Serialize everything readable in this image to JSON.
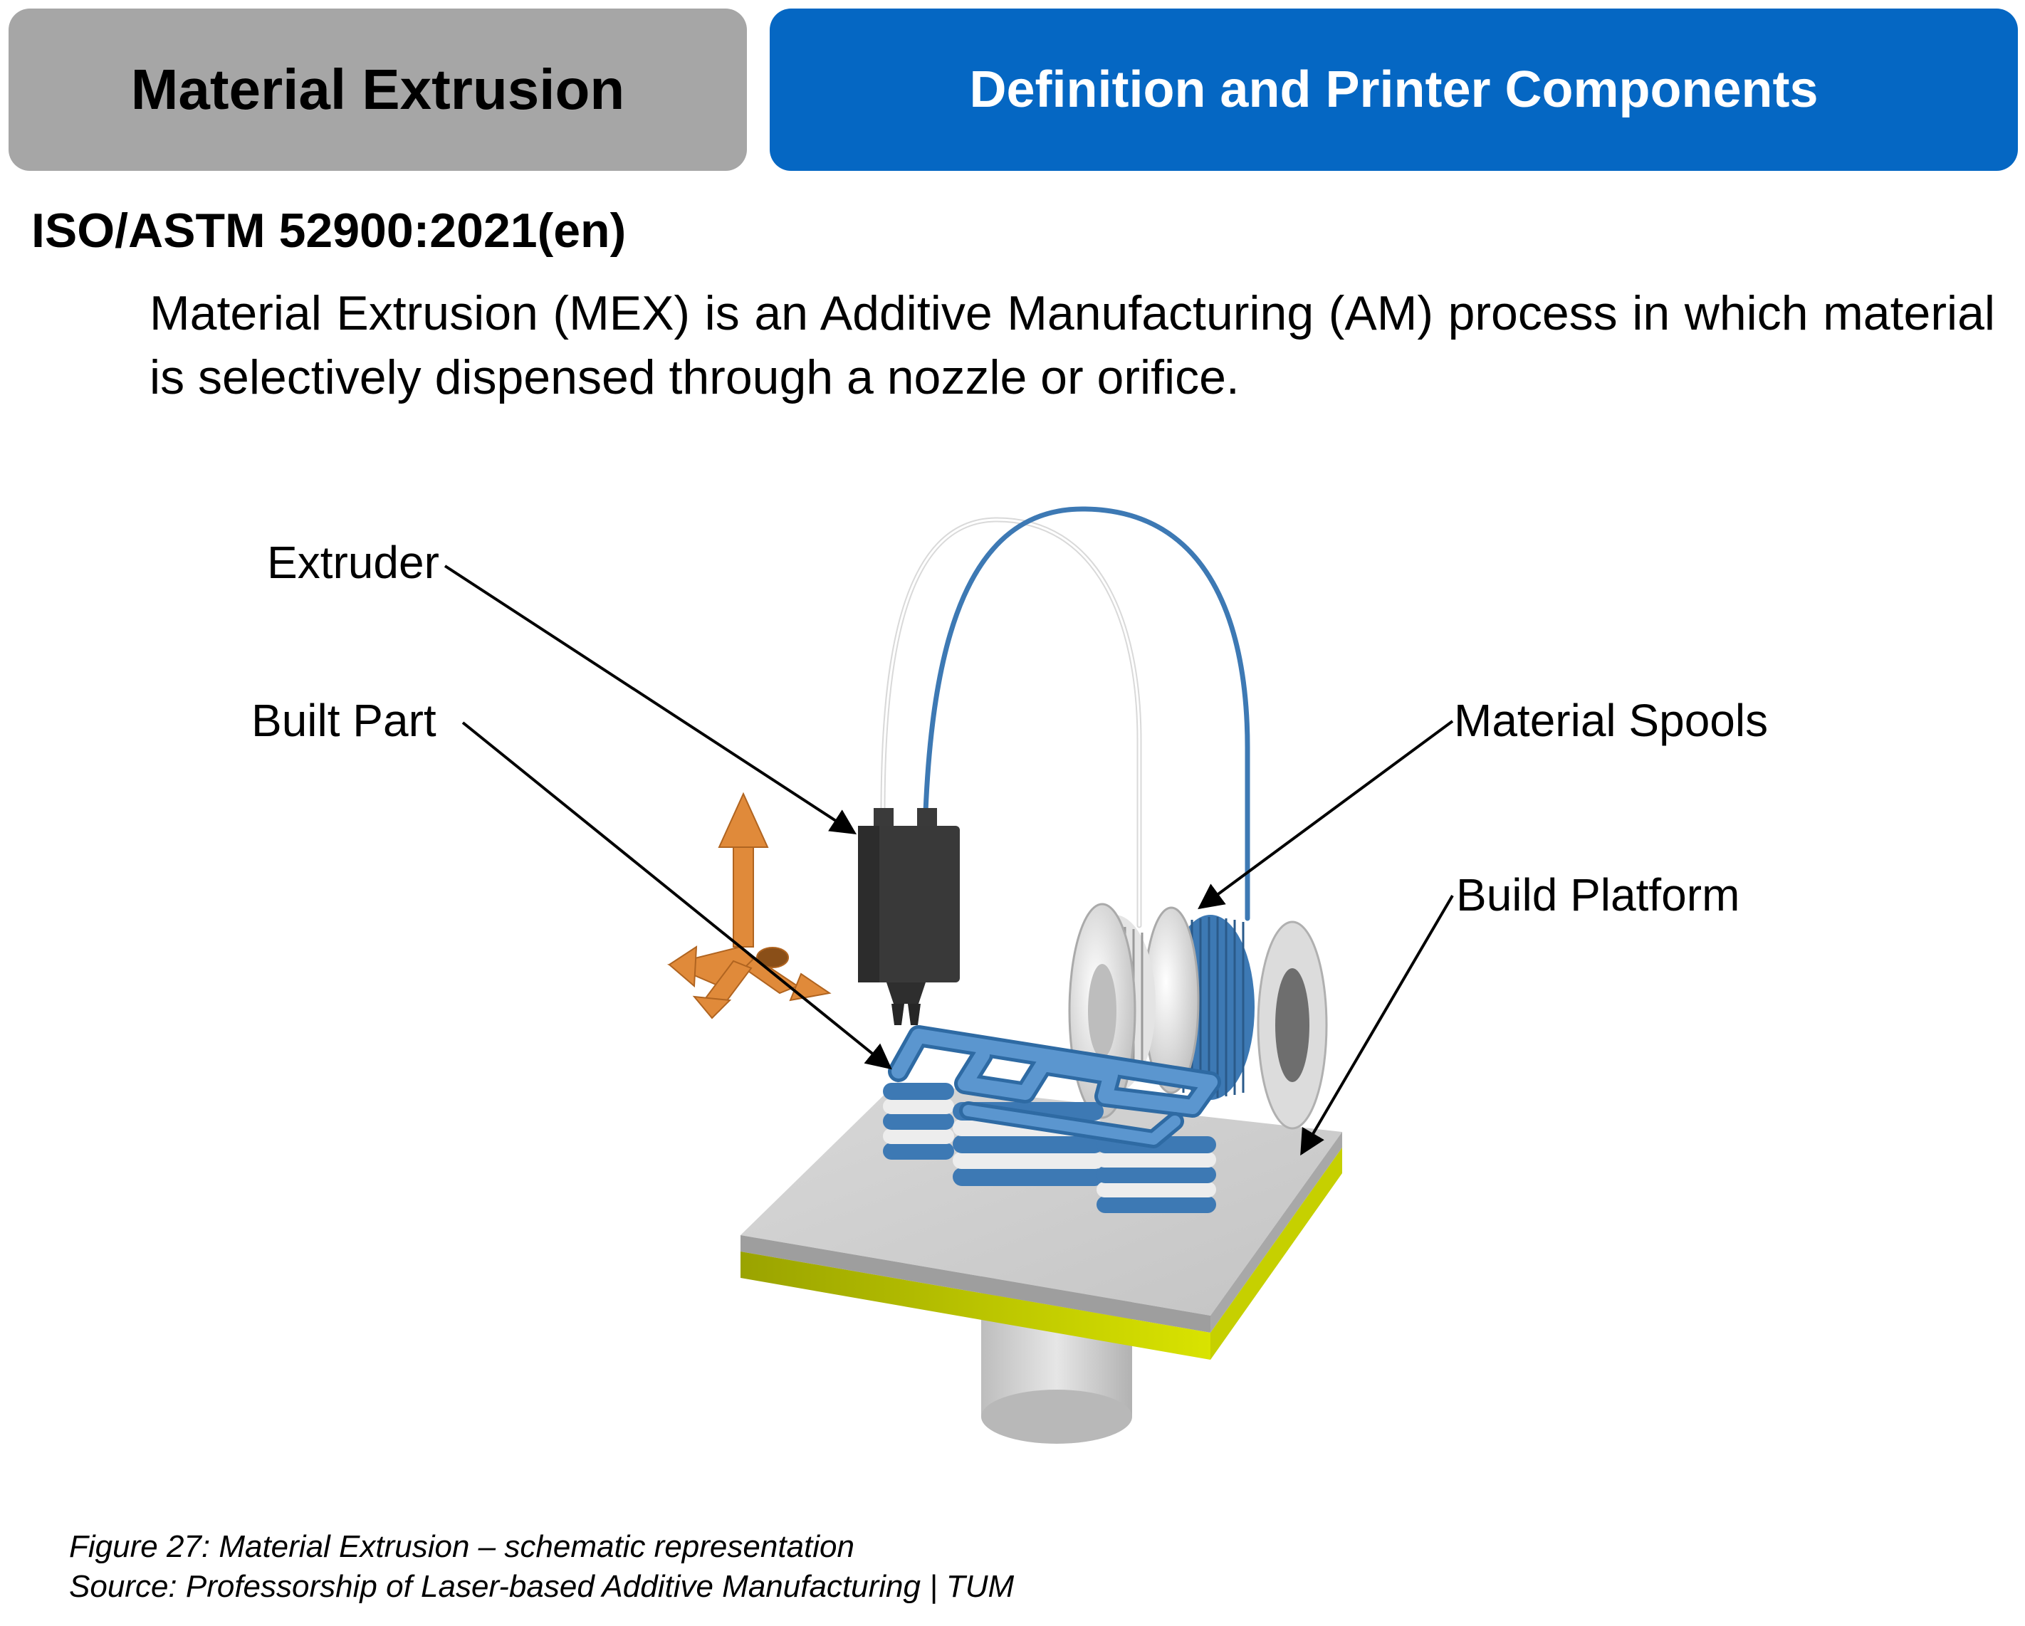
{
  "header": {
    "left_title": "Material Extrusion",
    "right_title": "Definition and Printer Components"
  },
  "standard": "ISO/ASTM 52900:2021(en)",
  "definition": "Material Extrusion (MEX) is an Additive Manufacturing (AM) process in which material is selectively dispensed through a nozzle or orifice.",
  "figure": {
    "labels": {
      "extruder": "Extruder",
      "built_part": "Built Part",
      "material_spools": "Material Spools",
      "build_platform": "Build Platform"
    },
    "colors": {
      "blue_filament": "#3d79b4",
      "white_filament": "#ececec",
      "platform_top": "#cfcfcf",
      "platform_edge": "#b8c400",
      "extruder_body": "#383838",
      "axes_arrows": "#e08a3a"
    }
  },
  "caption": {
    "line1": "Figure 27: Material Extrusion – schematic representation",
    "line2": "Source: Professorship of Laser-based Additive Manufacturing | TUM"
  }
}
